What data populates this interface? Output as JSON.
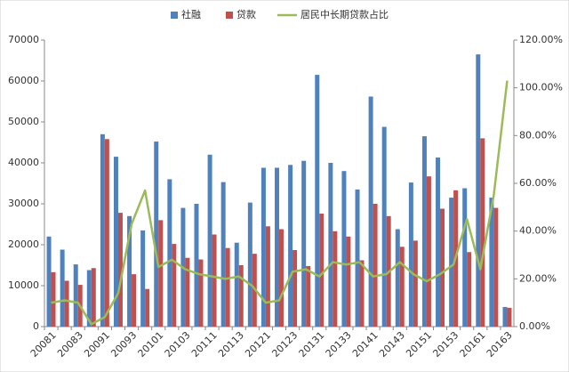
{
  "chart_data": {
    "type": "bar_line",
    "categories": [
      "20081",
      null,
      "20083",
      null,
      "20091",
      null,
      "20093",
      null,
      "20101",
      null,
      "20103",
      null,
      "20111",
      null,
      "20113",
      null,
      "20121",
      null,
      "20123",
      null,
      "20131",
      null,
      "20133",
      null,
      "20141",
      null,
      "20143",
      null,
      "20151",
      null,
      "20153",
      null,
      "20161",
      null,
      "20163"
    ],
    "series": [
      {
        "name": "社融",
        "color": "#4f81bd",
        "type": "bar",
        "values": [
          22000,
          18800,
          15200,
          13800,
          47000,
          41500,
          27000,
          23500,
          45200,
          36000,
          29000,
          30000,
          42000,
          35300,
          20500,
          30300,
          38800,
          38800,
          39500,
          40500,
          61500,
          40000,
          38000,
          33500,
          56200,
          48800,
          23800,
          35200,
          46500,
          41300,
          31500,
          33800,
          66500,
          31500,
          4800
        ]
      },
      {
        "name": "贷款",
        "color": "#c0504d",
        "type": "bar",
        "values": [
          13300,
          11200,
          10200,
          14300,
          45800,
          27800,
          12800,
          9200,
          26000,
          20200,
          16800,
          16400,
          22500,
          19200,
          15000,
          17800,
          24500,
          23800,
          18700,
          14800,
          27600,
          23300,
          22000,
          16200,
          30000,
          27000,
          19500,
          21000,
          36700,
          28800,
          33300,
          18200,
          46000,
          29000,
          4600
        ]
      },
      {
        "name": "居民中长期贷款占比",
        "color": "#9bbb59",
        "type": "line",
        "axis": "y2",
        "values": [
          10,
          11,
          10,
          1,
          4,
          14,
          43,
          57,
          25,
          28,
          24,
          22,
          21,
          20,
          21,
          17,
          10,
          11,
          23,
          24,
          21,
          27,
          26,
          27,
          21,
          22,
          27,
          22,
          19,
          22,
          26,
          45,
          24,
          55,
          103
        ]
      }
    ],
    "ylim": [
      0,
      70000
    ],
    "yticks": [
      0,
      10000,
      20000,
      30000,
      40000,
      50000,
      60000,
      70000
    ],
    "y2lim": [
      0,
      120
    ],
    "y2ticks": [
      {
        "value": 0,
        "label": "0.00%"
      },
      {
        "value": 20,
        "label": "20.00%"
      },
      {
        "value": 40,
        "label": "40.00%"
      },
      {
        "value": 60,
        "label": "60.00%"
      },
      {
        "value": 80,
        "label": "80.00%"
      },
      {
        "value": 100,
        "label": "100.00%"
      },
      {
        "value": 120,
        "label": "120.00%"
      }
    ],
    "grid": false,
    "legend": "top"
  }
}
